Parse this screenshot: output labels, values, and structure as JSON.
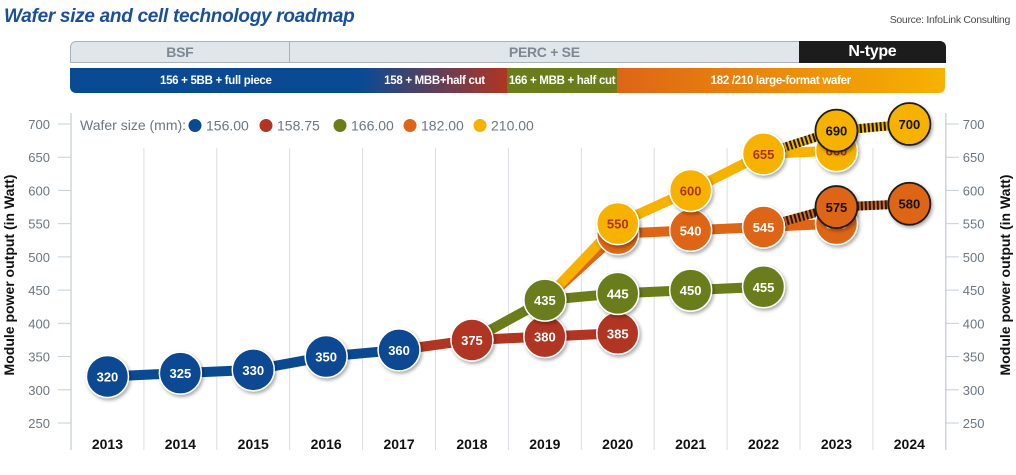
{
  "header": {
    "title": "Wafer size and cell technology roadmap",
    "source": "Source: InfoLink Consulting"
  },
  "technology_bars": [
    {
      "label": "BSF",
      "from_year": 2013,
      "to_year": 2015.95,
      "style": "gray"
    },
    {
      "label": "PERC + SE",
      "from_year": 2016,
      "to_year": 2022.95,
      "style": "gray"
    },
    {
      "label": "N-type",
      "from_year": 2023,
      "to_year": 2024.95,
      "style": "dark",
      "color": "#1c1c1c"
    }
  ],
  "wafer_bars": [
    {
      "label": "156 + 5BB + full piece",
      "from_year": 2013,
      "to_year": 2016.95,
      "colors": [
        "#0a4a93",
        "#0a4a93"
      ]
    },
    {
      "label": "158 + MBB+half cut",
      "from_year": 2017,
      "to_year": 2018.95,
      "colors": [
        "#0a4a93",
        "#b03522"
      ]
    },
    {
      "label": "166 + MBB + half cut",
      "from_year": 2019,
      "to_year": 2020.45,
      "colors": [
        "#6b7d1a",
        "#6b7d1a"
      ]
    },
    {
      "label": "182 /210 large-format wafer",
      "from_year": 2020.5,
      "to_year": 2024.95,
      "colors": [
        "#de6516",
        "#f7b200"
      ]
    }
  ],
  "chart_data": {
    "type": "line",
    "title": "Wafer size and cell technology roadmap",
    "xlabel": "",
    "ylabel": "Module power output (in Watt)",
    "ylabel_right": "Module power output (in Watt)",
    "ylim": [
      225,
      725
    ],
    "yticks": [
      250,
      300,
      350,
      400,
      450,
      500,
      550,
      600,
      650,
      700
    ],
    "categories": [
      "2013",
      "2014",
      "2015",
      "2016",
      "2017",
      "2018",
      "2019",
      "2020",
      "2021",
      "2022",
      "2023",
      "2024"
    ],
    "grid": "vertical",
    "legend": {
      "title": "Wafer size (mm):",
      "position": "top-left"
    },
    "series": [
      {
        "name": "156.00",
        "color": "#0a4a93",
        "label_color": "#ffffff",
        "points": [
          [
            2013,
            320
          ],
          [
            2014,
            325
          ],
          [
            2015,
            330
          ],
          [
            2016,
            350
          ],
          [
            2017,
            360
          ]
        ]
      },
      {
        "name": "158.75",
        "color": "#b03522",
        "label_color": "#ffffff",
        "points": [
          [
            2018,
            375
          ],
          [
            2019,
            380
          ],
          [
            2020,
            385
          ]
        ],
        "connect_from": [
          2017,
          360
        ]
      },
      {
        "name": "166.00",
        "color": "#6b7d1a",
        "label_color": "#ffffff",
        "points": [
          [
            2019,
            435
          ],
          [
            2020,
            445
          ],
          [
            2021,
            450
          ],
          [
            2022,
            455
          ]
        ],
        "connect_from": [
          2018,
          375
        ]
      },
      {
        "name": "182.00",
        "color": "#de6516",
        "label_color": "#ffffff",
        "points": [
          [
            2020,
            535
          ],
          [
            2021,
            540
          ],
          [
            2022,
            545
          ],
          [
            2023,
            550
          ]
        ],
        "connect_from": [
          2019,
          435
        ]
      },
      {
        "name": "210.00",
        "color": "#f7b200",
        "label_color": "#a8361c",
        "points": [
          [
            2020,
            550
          ],
          [
            2021,
            600
          ],
          [
            2022,
            655
          ],
          [
            2023,
            660
          ]
        ],
        "connect_from": [
          2019,
          435
        ]
      }
    ],
    "ntype_series": [
      {
        "name": "182.00 N-type",
        "color": "#de6516",
        "label_color": "#111111",
        "points": [
          [
            2023,
            575
          ],
          [
            2024,
            580
          ]
        ],
        "connect_from": [
          2022,
          545
        ]
      },
      {
        "name": "210.00 N-type",
        "color": "#f7b200",
        "label_color": "#111111",
        "points": [
          [
            2023,
            690
          ],
          [
            2024,
            700
          ]
        ],
        "connect_from": [
          2022,
          655
        ]
      }
    ]
  }
}
